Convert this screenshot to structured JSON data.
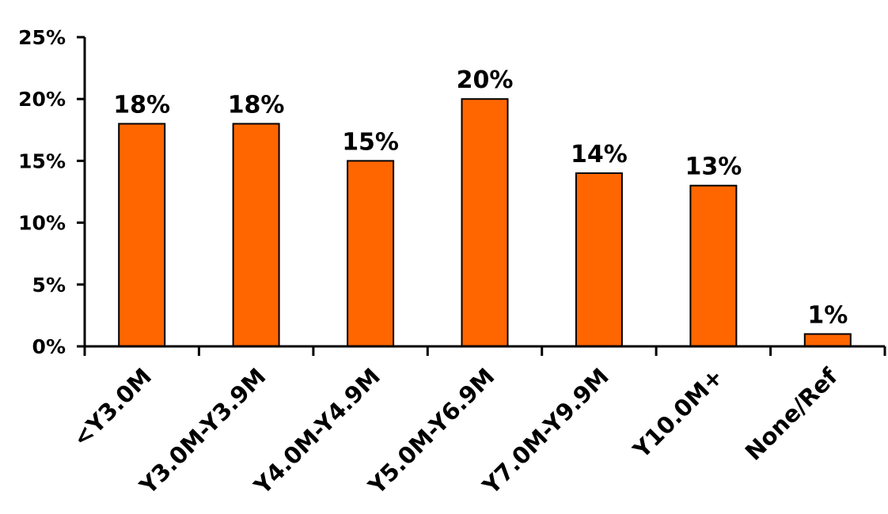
{
  "chart_data": {
    "type": "bar",
    "categories": [
      "<Y3.0M",
      "Y3.0M-Y3.9M",
      "Y4.0M-Y4.9M",
      "Y5.0M-Y6.9M",
      "Y7.0M-Y9.9M",
      "Y10.0M+",
      "None/Ref"
    ],
    "values": [
      18,
      18,
      15,
      20,
      14,
      13,
      1
    ],
    "data_labels": [
      "18%",
      "18%",
      "15%",
      "20%",
      "14%",
      "13%",
      "1%"
    ],
    "yticks": [
      0,
      5,
      10,
      15,
      20,
      25
    ],
    "ytick_labels": [
      "0%",
      "5%",
      "10%",
      "15%",
      "20%",
      "25%"
    ],
    "ylim": [
      0,
      25
    ],
    "title": "",
    "xlabel": "",
    "ylabel": "",
    "grid": false,
    "legend": "none",
    "bar_color": "#FF6600",
    "bar_edge_color": "#000000"
  }
}
